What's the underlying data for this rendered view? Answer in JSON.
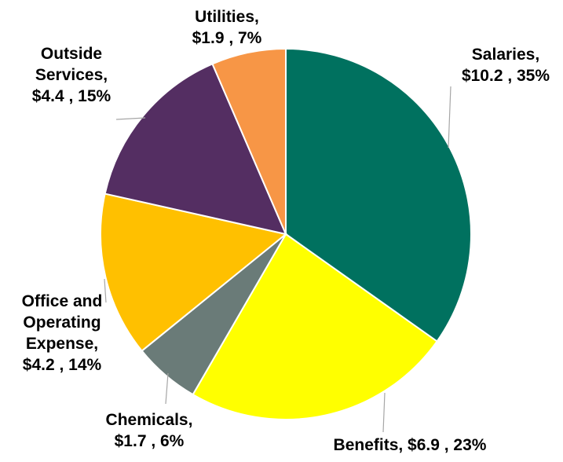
{
  "chart_data": {
    "type": "pie",
    "title": "",
    "slices": [
      {
        "name": "Salaries",
        "value": 10.2,
        "percent": 35,
        "color": "#00715F",
        "label_lines": [
          "Salaries,",
          "$10.2 , 35%"
        ]
      },
      {
        "name": "Benefits",
        "value": 6.9,
        "percent": 23,
        "color": "#FFFF00",
        "label_lines": [
          "Benefits,  $6.9 , 23%"
        ]
      },
      {
        "name": "Chemicals",
        "value": 1.7,
        "percent": 6,
        "color": "#6A7B78",
        "label_lines": [
          "Chemicals,",
          "$1.7 , 6%"
        ]
      },
      {
        "name": "Office and Operating Expense",
        "value": 4.2,
        "percent": 14,
        "color": "#FFC000",
        "label_lines": [
          "Office and",
          "Operating",
          "Expense,",
          "$4.2 , 14%"
        ]
      },
      {
        "name": "Outside Services",
        "value": 4.4,
        "percent": 15,
        "color": "#542E62",
        "label_lines": [
          "Outside",
          "Services,",
          "$4.4 , 15%"
        ]
      },
      {
        "name": "Utilities",
        "value": 1.9,
        "percent": 7,
        "color": "#F79646",
        "label_lines": [
          "Utilities,",
          "$1.9 , 7%"
        ]
      }
    ],
    "start_angle": "12 o'clock",
    "direction": "clockwise",
    "legend": "none",
    "data_labels": "outside-with-leader-lines"
  }
}
